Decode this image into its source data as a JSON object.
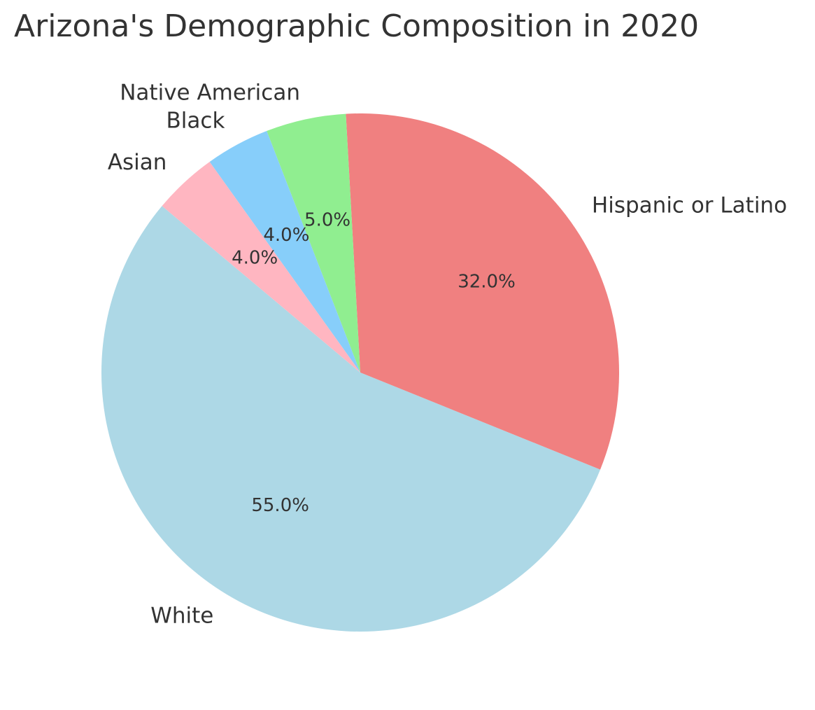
{
  "chart_data": {
    "type": "pie",
    "title": "Arizona's Demographic Composition in 2020",
    "slices": [
      {
        "label": "White",
        "value": 55.0,
        "pct_text": "55.0%",
        "color": "#add8e6"
      },
      {
        "label": "Hispanic or Latino",
        "value": 32.0,
        "pct_text": "32.0%",
        "color": "#f08080"
      },
      {
        "label": "Native American",
        "value": 5.0,
        "pct_text": "5.0%",
        "color": "#90ee90"
      },
      {
        "label": "Black",
        "value": 4.0,
        "pct_text": "4.0%",
        "color": "#87cefa"
      },
      {
        "label": "Asian",
        "value": 4.0,
        "pct_text": "4.0%",
        "color": "#ffb6c1"
      }
    ],
    "start_angle_deg": 140,
    "direction": "counterclockwise",
    "legend": "none"
  }
}
